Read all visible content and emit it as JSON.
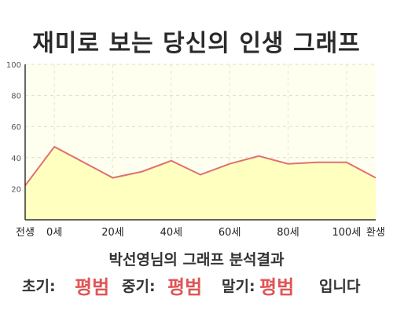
{
  "title": "재미로 보는 당신의 인생 그래프",
  "result_caption": "박선영님의 그래프 분석결과",
  "phases": {
    "early_label": "초기:",
    "early_value": "평범",
    "middle_label": "중기:",
    "middle_value": "평범",
    "late_label": "말기:",
    "late_value": "평범",
    "ending": "입니다"
  },
  "colors": {
    "plot_background": "#fffff0",
    "area_fill": "#ffffc0",
    "line": "#e07070",
    "value_text": "#e05555"
  },
  "chart_data": {
    "type": "area",
    "title": "재미로 보는 당신의 인생 그래프",
    "xlabel": "",
    "ylabel": "",
    "ylim": [
      0,
      100
    ],
    "y_ticks": [
      20,
      40,
      60,
      80,
      100
    ],
    "x_tick_labels": [
      {
        "label": "전생",
        "x": -10
      },
      {
        "label": "0세",
        "x": 0
      },
      {
        "label": "20세",
        "x": 20
      },
      {
        "label": "40세",
        "x": 40
      },
      {
        "label": "60세",
        "x": 60
      },
      {
        "label": "80세",
        "x": 80
      },
      {
        "label": "100세",
        "x": 100
      },
      {
        "label": "환생",
        "x": 110
      }
    ],
    "xlim": [
      -10,
      110
    ],
    "grid": true,
    "series": [
      {
        "x": [
          -10,
          0,
          20,
          30,
          40,
          50,
          60,
          70,
          80,
          90,
          100,
          110
        ],
        "values": [
          22,
          47,
          27,
          31,
          38,
          29,
          36,
          41,
          36,
          37,
          37,
          27
        ]
      }
    ]
  }
}
